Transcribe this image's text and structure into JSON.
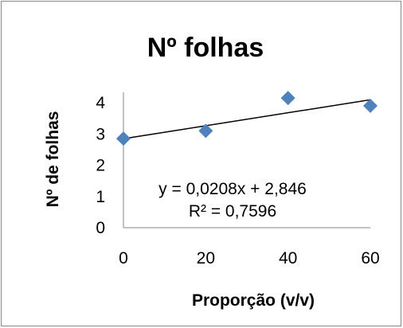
{
  "chart_data": {
    "type": "scatter",
    "title": "Nº folhas",
    "xlabel": "Proporção (v/v)",
    "ylabel": "Nº de folhas",
    "x": [
      0,
      20,
      40,
      60
    ],
    "series": [
      {
        "values": [
          2.85,
          3.1,
          4.15,
          3.9
        ],
        "color": "#4F81BD",
        "marker": "diamond"
      }
    ],
    "trendline": {
      "type": "linear",
      "slope": 0.0208,
      "intercept": 2.846,
      "color": "#000000"
    },
    "equation": "y = 0,0208x + 2,846",
    "r_squared": "R² = 0,7596",
    "xlim": [
      0,
      60
    ],
    "ylim": [
      0,
      4
    ],
    "xticks": [
      "0",
      "20",
      "40",
      "60"
    ],
    "yticks": [
      "0",
      "1",
      "2",
      "3",
      "4"
    ],
    "grid": false,
    "legend": "none"
  }
}
